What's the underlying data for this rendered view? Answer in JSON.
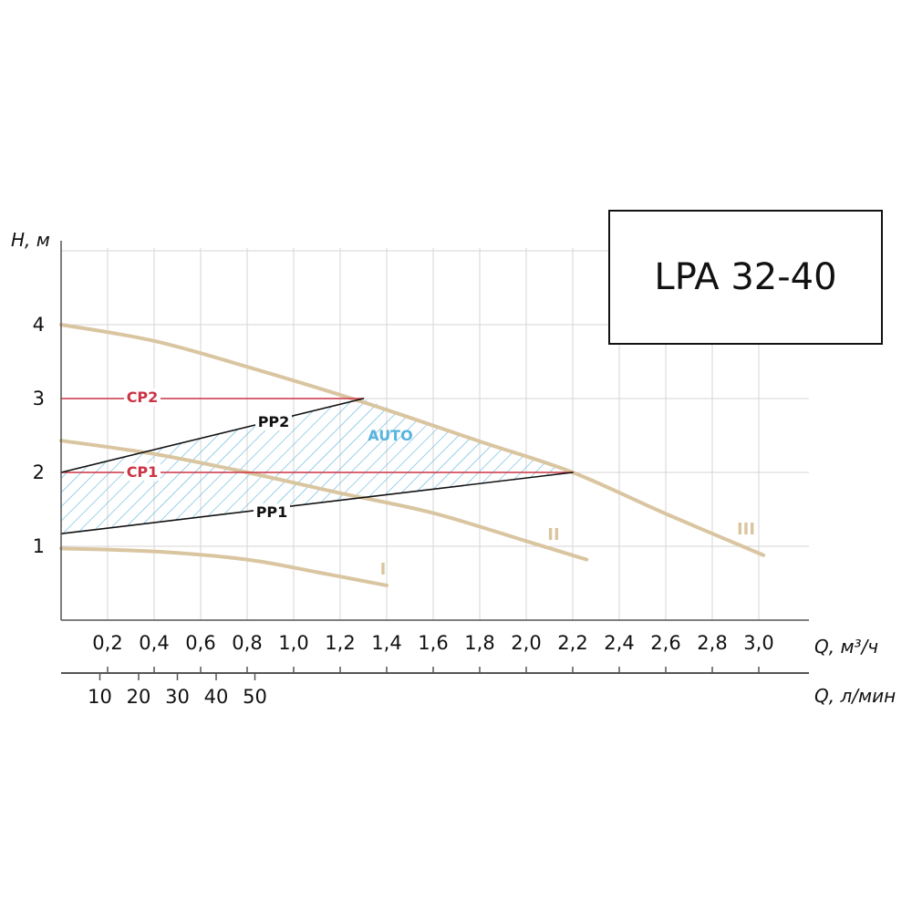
{
  "model": "LPA 32-40",
  "chart_data": {
    "type": "line",
    "title": "LPA 32-40",
    "ylabel": "H, м",
    "xlabel": "Q, м³/ч",
    "x2label": "Q, л/мин",
    "xlim": [
      0,
      3.2
    ],
    "ylim": [
      0,
      5
    ],
    "x_ticks": [
      0.2,
      0.4,
      0.6,
      0.8,
      1.0,
      1.2,
      1.4,
      1.6,
      1.8,
      2.0,
      2.2,
      2.4,
      2.6,
      2.8,
      3.0
    ],
    "x_tick_labels": [
      "0,2",
      "0,4",
      "0,6",
      "0,8",
      "1,0",
      "1,2",
      "1,4",
      "1,6",
      "1,8",
      "2,0",
      "2,2",
      "2,4",
      "2,6",
      "2,8",
      "3,0"
    ],
    "y_ticks": [
      1,
      2,
      3,
      4
    ],
    "y_tick_labels": [
      "1",
      "2",
      "3",
      "4"
    ],
    "x2_ticks": [
      10,
      20,
      30,
      40,
      50
    ],
    "x2_tick_labels": [
      "10",
      "20",
      "30",
      "40",
      "50"
    ],
    "grid": true,
    "colors": {
      "speed_curve": "#d9c5a0",
      "constant_pressure": "#cc3344",
      "proportional_pressure": "#111111",
      "auto_zone": "#5ab4dd"
    },
    "series": [
      {
        "name": "I",
        "kind": "speed",
        "x": [
          0,
          0.4,
          0.8,
          1.1,
          1.4
        ],
        "y": [
          0.97,
          0.93,
          0.82,
          0.65,
          0.47
        ]
      },
      {
        "name": "II",
        "kind": "speed",
        "x": [
          0,
          0.4,
          0.8,
          1.2,
          1.6,
          2.0,
          2.26
        ],
        "y": [
          2.43,
          2.25,
          2.0,
          1.72,
          1.45,
          1.07,
          0.82
        ]
      },
      {
        "name": "III",
        "kind": "speed",
        "x": [
          0,
          0.4,
          0.8,
          1.3,
          1.8,
          2.2,
          2.6,
          3.02
        ],
        "y": [
          4.0,
          3.78,
          3.43,
          2.95,
          2.42,
          2.0,
          1.44,
          0.88
        ]
      },
      {
        "name": "CP2",
        "kind": "constant",
        "x": [
          0,
          1.3
        ],
        "y": [
          3.0,
          3.0
        ]
      },
      {
        "name": "CP1",
        "kind": "constant",
        "x": [
          0,
          2.2
        ],
        "y": [
          2.0,
          2.0
        ]
      },
      {
        "name": "PP2",
        "kind": "proportional",
        "x": [
          0,
          1.3
        ],
        "y": [
          2.0,
          3.0
        ]
      },
      {
        "name": "PP1",
        "kind": "proportional",
        "x": [
          0,
          2.2
        ],
        "y": [
          1.17,
          2.0
        ]
      }
    ],
    "annotations": [
      {
        "text": "AUTO",
        "x": 1.44,
        "y": 2.5
      }
    ]
  }
}
